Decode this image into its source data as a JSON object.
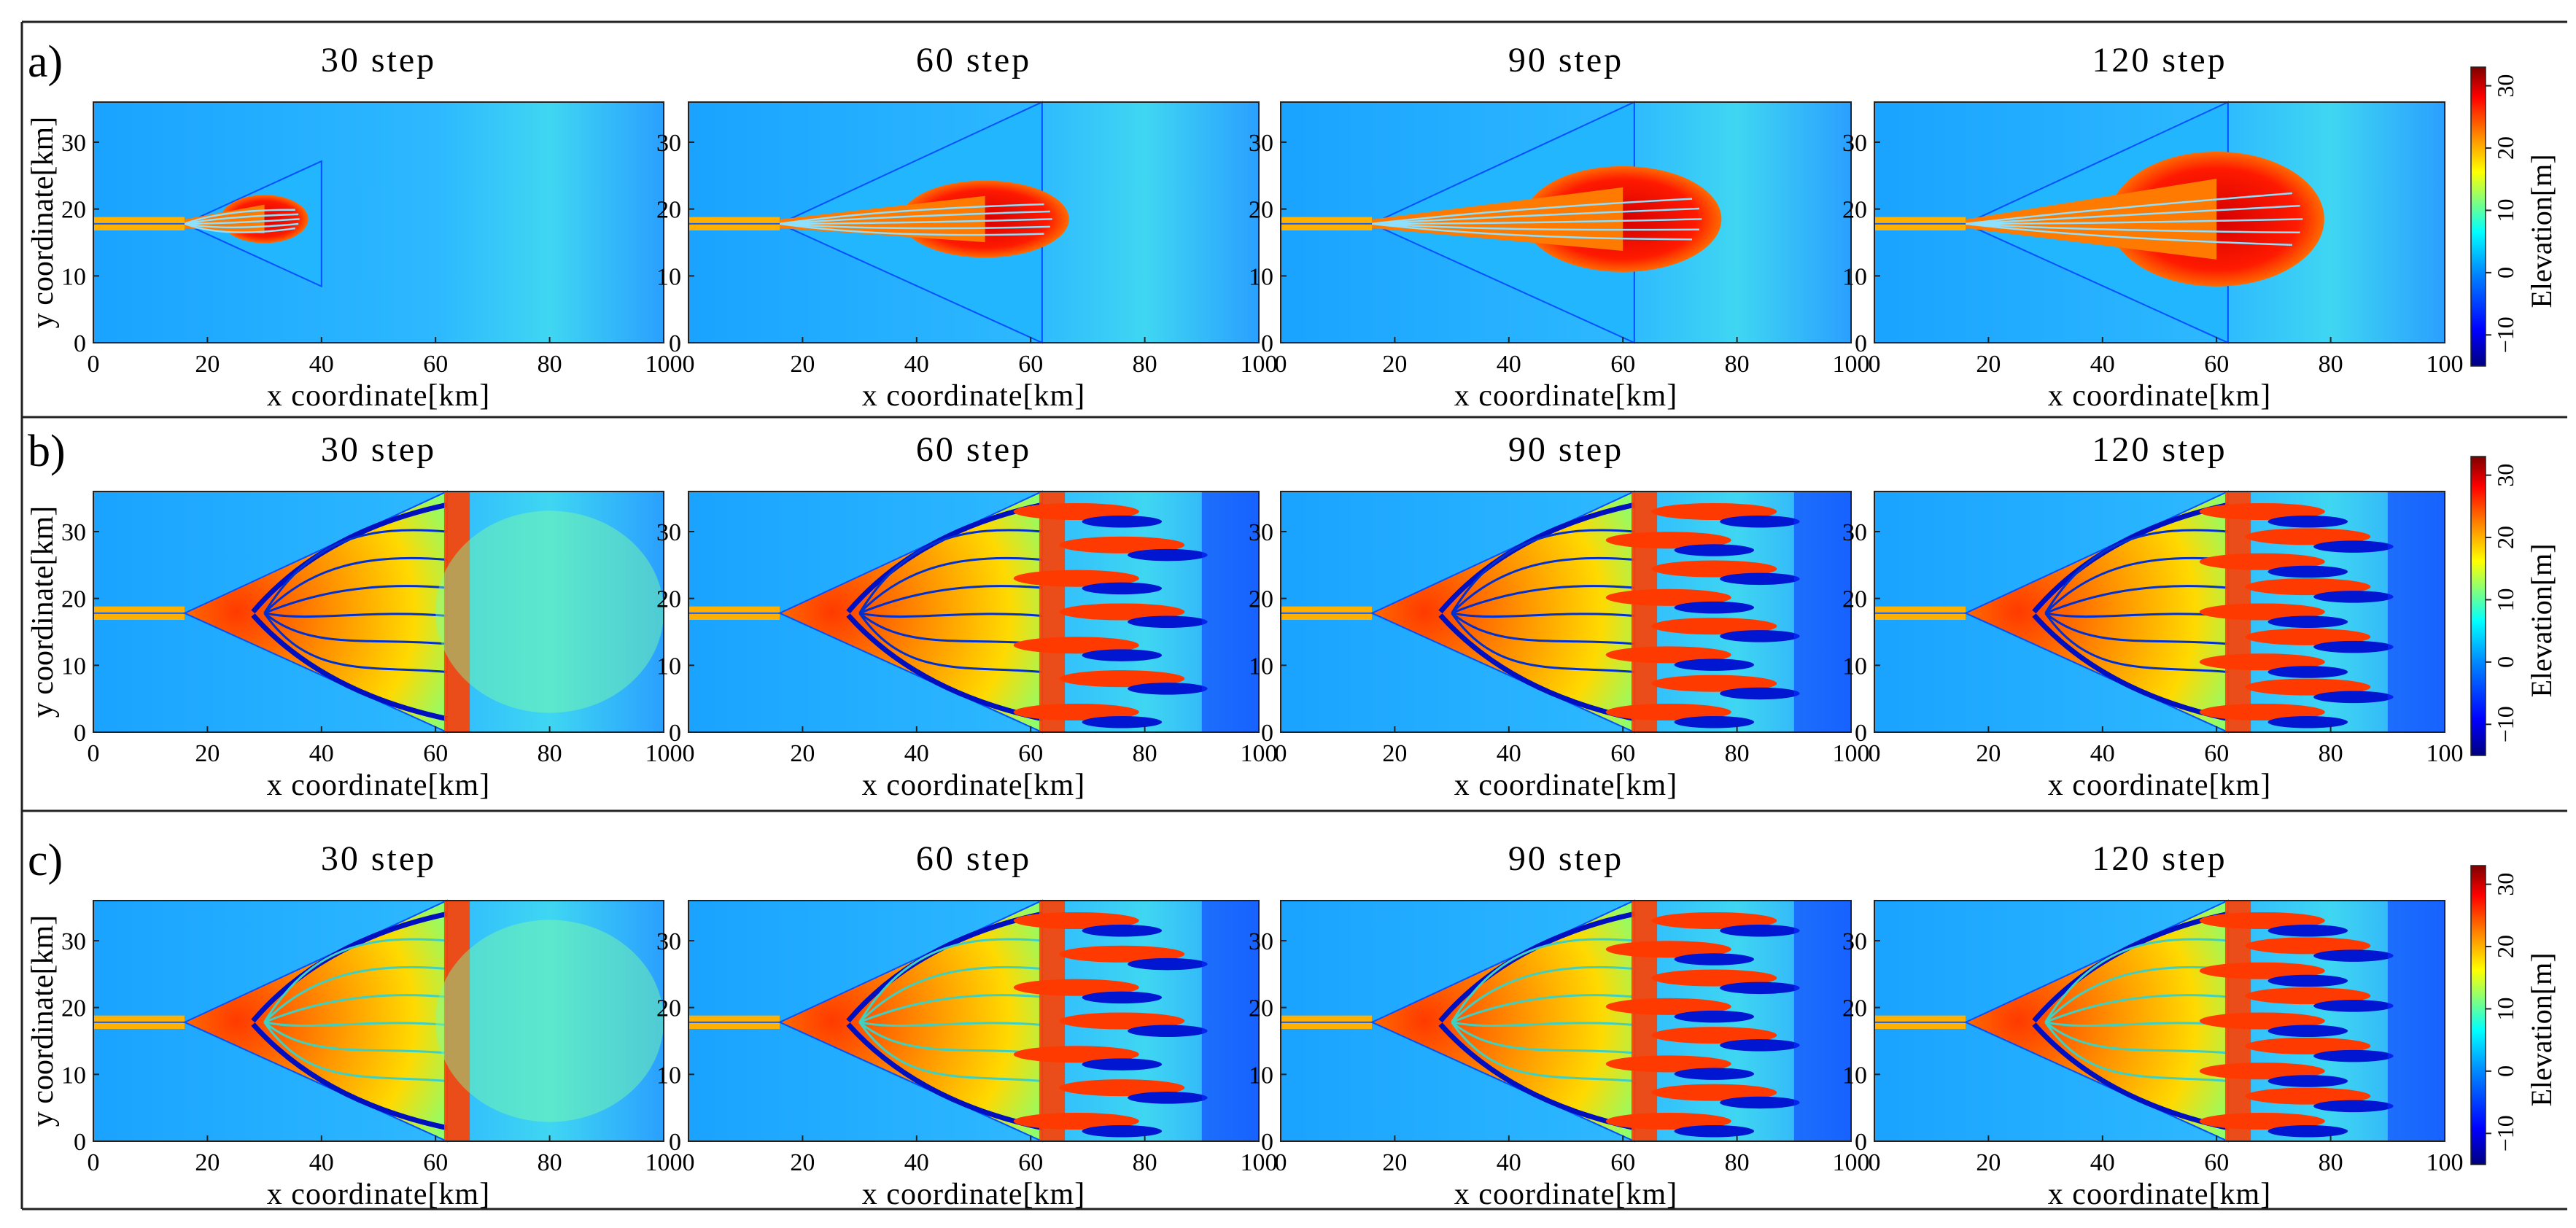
{
  "figure": {
    "panel_letters": [
      "a)",
      "b)",
      "c)"
    ],
    "colorbar_label": "Elevation[m]",
    "colorbar_ticks": [
      "30",
      "20",
      "10",
      "0",
      "−10"
    ],
    "colormap": [
      "#00007f",
      "#0000ff",
      "#007fff",
      "#00ffff",
      "#7fff7f",
      "#ffff00",
      "#ff7f00",
      "#ff0000",
      "#7f0000"
    ]
  },
  "chart_data": {
    "type": "heatmap",
    "description_variable": "Elevation[m]",
    "color_range": [
      -15,
      33
    ],
    "xlabel": "x coordinate[km]",
    "ylabel": "y coordinate[km]",
    "xlim": [
      0,
      100
    ],
    "ylim": [
      0,
      36
    ],
    "x_ticks": [
      0,
      20,
      40,
      60,
      80,
      100
    ],
    "y_ticks": [
      0,
      10,
      20,
      30
    ],
    "rows": [
      {
        "panel": "a)",
        "plots": [
          {
            "title": "30 step",
            "delta_extent_km": 40
          },
          {
            "title": "60 step",
            "delta_extent_km": 62
          },
          {
            "title": "90 step",
            "delta_extent_km": 70
          },
          {
            "title": "120 step",
            "delta_extent_km": 75
          }
        ]
      },
      {
        "panel": "b)",
        "plots": [
          {
            "title": "30 step",
            "delta_extent_km": 62
          },
          {
            "title": "60 step",
            "delta_extent_km": 100
          },
          {
            "title": "90 step",
            "delta_extent_km": 100
          },
          {
            "title": "120 step",
            "delta_extent_km": 100
          }
        ]
      },
      {
        "panel": "c)",
        "plots": [
          {
            "title": "30 step",
            "delta_extent_km": 62
          },
          {
            "title": "60 step",
            "delta_extent_km": 100
          },
          {
            "title": "90 step",
            "delta_extent_km": 100
          },
          {
            "title": "120 step",
            "delta_extent_km": 100
          }
        ]
      }
    ]
  }
}
